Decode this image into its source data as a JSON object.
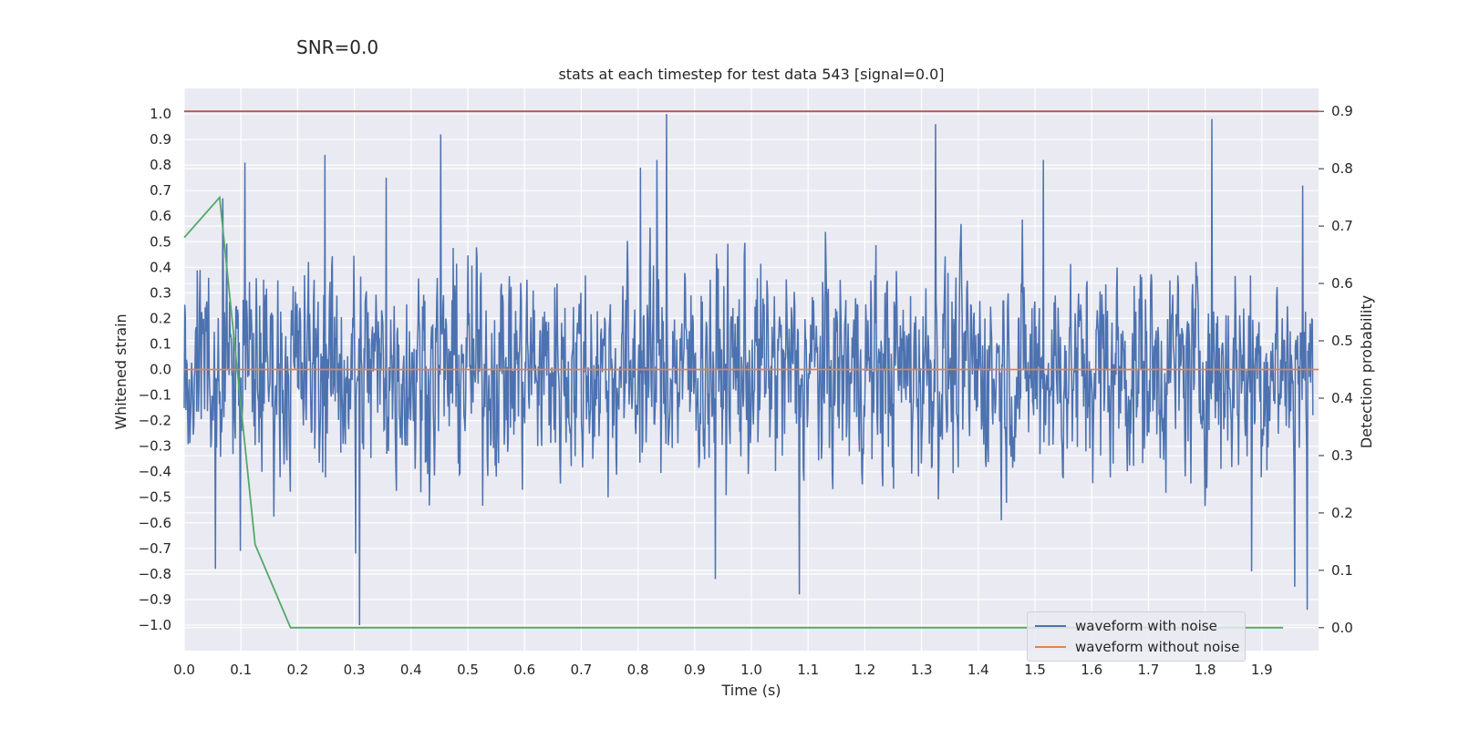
{
  "suptitle": "SNR=0.0",
  "title": "stats at each timestep for test data 543 [signal=0.0]",
  "chart_data": {
    "type": "line",
    "xlabel": "Time (s)",
    "ylabel": "Whitened strain",
    "y2label": "Detection probability",
    "xlim": [
      0.0,
      2.0
    ],
    "ylim": [
      -1.1,
      1.1
    ],
    "y2lim": [
      -0.04,
      0.94
    ],
    "xticks": [
      "0.0",
      "0.1",
      "0.2",
      "0.3",
      "0.4",
      "0.5",
      "0.6",
      "0.7",
      "0.8",
      "0.9",
      "1.0",
      "1.1",
      "1.2",
      "1.3",
      "1.4",
      "1.5",
      "1.6",
      "1.7",
      "1.8",
      "1.9"
    ],
    "yticks": [
      "1.0",
      "0.9",
      "0.8",
      "0.7",
      "0.6",
      "0.5",
      "0.4",
      "0.3",
      "0.2",
      "0.1",
      "0.0",
      "−0.1",
      "−0.2",
      "−0.3",
      "−0.4",
      "−0.5",
      "−0.6",
      "−0.7",
      "−0.8",
      "−0.9",
      "−1.0"
    ],
    "y2ticks": [
      "0.9",
      "0.8",
      "0.7",
      "0.6",
      "0.5",
      "0.4",
      "0.3",
      "0.2",
      "0.1",
      "0.0"
    ],
    "grid": true,
    "legend_position": "lower right",
    "series": [
      {
        "name": "waveform with noise",
        "color": "#4c72b0",
        "axis": "left",
        "description": "dense noise signal, ~2000 samples, amplitude mostly within ±0.5 with spikes to ±1.0",
        "peaks": [
          {
            "x": 0.055,
            "y": -0.78
          },
          {
            "x": 0.068,
            "y": 0.67
          },
          {
            "x": 0.099,
            "y": -0.71
          },
          {
            "x": 0.107,
            "y": 0.81
          },
          {
            "x": 0.248,
            "y": 0.84
          },
          {
            "x": 0.302,
            "y": -0.72
          },
          {
            "x": 0.309,
            "y": -1.0
          },
          {
            "x": 0.356,
            "y": 0.75
          },
          {
            "x": 0.452,
            "y": 0.92
          },
          {
            "x": 0.804,
            "y": 0.79
          },
          {
            "x": 0.833,
            "y": 0.82
          },
          {
            "x": 0.85,
            "y": 1.0
          },
          {
            "x": 0.936,
            "y": -0.82
          },
          {
            "x": 1.085,
            "y": -0.88
          },
          {
            "x": 1.325,
            "y": 0.96
          },
          {
            "x": 1.515,
            "y": 0.82
          },
          {
            "x": 1.812,
            "y": 0.98
          },
          {
            "x": 1.882,
            "y": -0.79
          },
          {
            "x": 1.958,
            "y": -0.85
          },
          {
            "x": 1.972,
            "y": 0.72
          },
          {
            "x": 1.98,
            "y": -0.94
          }
        ]
      },
      {
        "name": "waveform without noise",
        "color": "#dd8452",
        "axis": "left",
        "x": [
          0.0,
          2.0
        ],
        "y": [
          0.0,
          0.0
        ]
      },
      {
        "name": "",
        "color": "#55a868",
        "axis": "right",
        "x": [
          0.0,
          0.0625,
          0.125,
          0.1875,
          0.25,
          0.5,
          1.0,
          1.5,
          1.9375
        ],
        "y": [
          0.68,
          0.75,
          0.145,
          0.0,
          0.0,
          0.0,
          0.0,
          0.0,
          0.0
        ]
      },
      {
        "name": "",
        "color": "#c44e52",
        "axis": "right",
        "x": [
          0.0,
          2.0
        ],
        "y": [
          0.9,
          0.9
        ]
      }
    ]
  }
}
